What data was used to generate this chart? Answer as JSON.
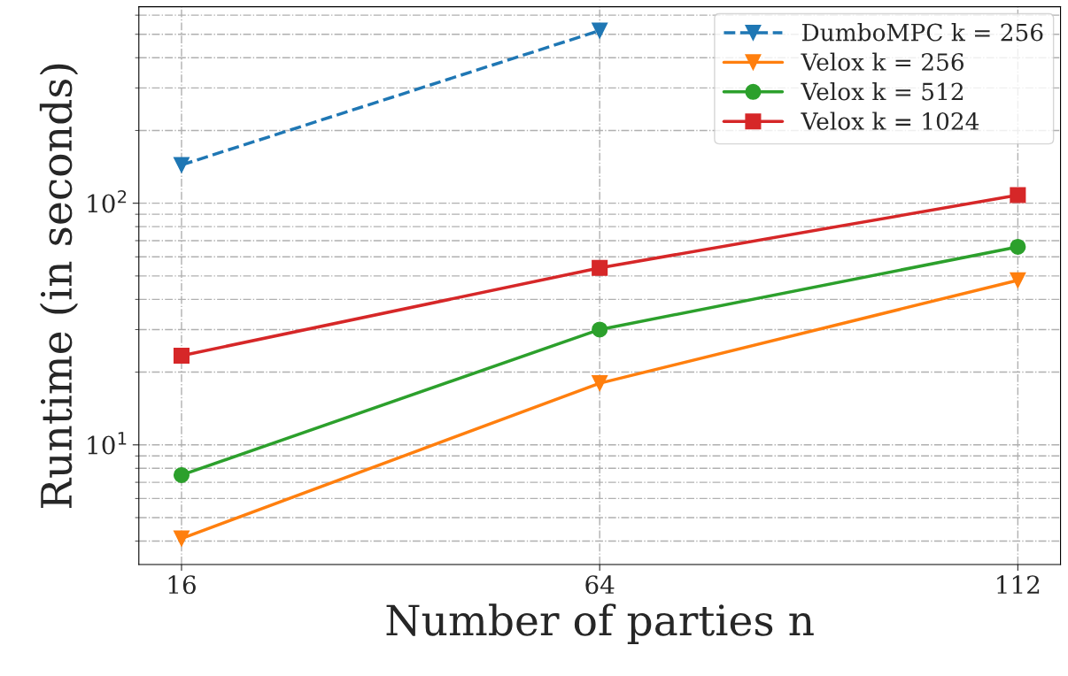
{
  "chart_data": {
    "type": "line",
    "xlabel": "Number of parties n",
    "ylabel": "Runtime (in seconds)",
    "x": [
      16,
      64,
      112
    ],
    "xlim": [
      11.1,
      116.9
    ],
    "xticks": [
      16,
      64,
      112
    ],
    "log": "y",
    "ylim": [
      3.2,
      650
    ],
    "yticks": [
      {
        "value": 10,
        "label": "10$^{1}$"
      },
      {
        "value": 100,
        "label": "10$^{2}$"
      }
    ],
    "grid": true,
    "legend": "top right",
    "series": [
      {
        "name": "DumboMPC k = 256",
        "color": "#1f77b4",
        "values": [
          144,
          518,
          null
        ],
        "marker": "triangle",
        "line_style": "dashed"
      },
      {
        "name": "Velox k = 256",
        "color": "#ff7f0e",
        "values": [
          4.1,
          18,
          48
        ],
        "marker": "triangle",
        "line_style": "solid"
      },
      {
        "name": "Velox k = 512",
        "color": "#2ca02c",
        "values": [
          7.5,
          30,
          66
        ],
        "marker": "circle",
        "line_style": "solid"
      },
      {
        "name": "Velox k = 1024",
        "color": "#d62728",
        "values": [
          23.4,
          54,
          108
        ],
        "marker": "square",
        "line_style": "solid"
      }
    ]
  }
}
